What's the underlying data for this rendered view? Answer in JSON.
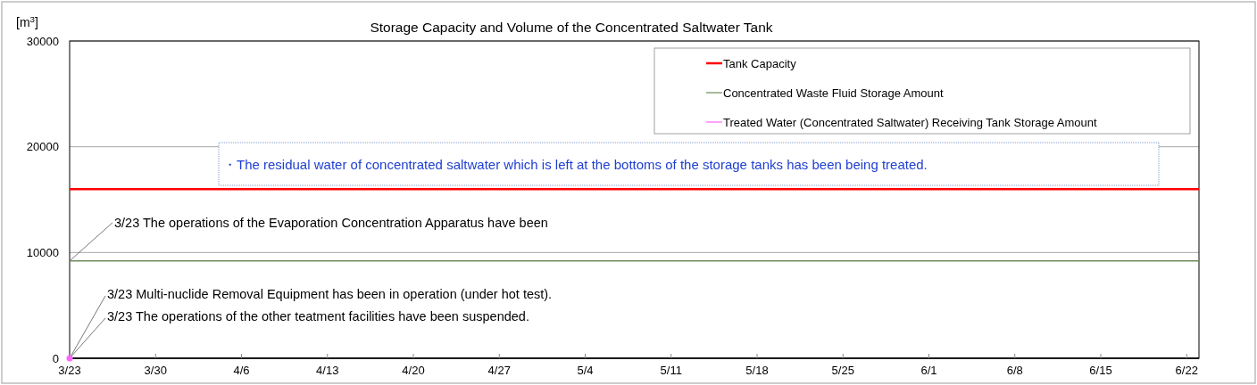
{
  "chart_data": {
    "type": "line",
    "title": "Storage Capacity and Volume of the Concentrated Saltwater Tank",
    "ylabel": "[m$^{3}$]",
    "x": [
      "--03-23",
      "--06-23"
    ],
    "xlim": [
      "--03-23",
      "--06-23"
    ],
    "xticks": [
      {
        "value": "--03-23",
        "label": "3/23"
      },
      {
        "value": "--03-30",
        "label": "3/30"
      },
      {
        "value": "--04-06",
        "label": "4/6"
      },
      {
        "value": "--04-13",
        "label": "4/13"
      },
      {
        "value": "--04-20",
        "label": "4/20"
      },
      {
        "value": "--04-27",
        "label": "4/27"
      },
      {
        "value": "--05-04",
        "label": "5/4"
      },
      {
        "value": "--05-11",
        "label": "5/11"
      },
      {
        "value": "--05-18",
        "label": "5/18"
      },
      {
        "value": "--05-25",
        "label": "5/25"
      },
      {
        "value": "--06-01",
        "label": "6/1"
      },
      {
        "value": "--06-08",
        "label": "6/8"
      },
      {
        "value": "--06-15",
        "label": "6/15"
      },
      {
        "value": "--06-22",
        "label": "6/22"
      }
    ],
    "ylim": [
      0,
      30000
    ],
    "yticks": [
      0,
      10000,
      20000,
      30000
    ],
    "grid": "y",
    "legend": "top right",
    "series": [
      {
        "name": "Tank Capacity",
        "color": "#ff0000",
        "values": [
          16000,
          16000
        ]
      },
      {
        "name": "Concentrated Waste Fluid Storage Amount",
        "color": "#6e8a5a",
        "values": [
          9200,
          9200
        ]
      },
      {
        "name": "Treated Water (Concentrated Saltwater) Receiving Tank Storage Amount",
        "color": "#ff66ff",
        "marker": "circle",
        "x": [
          "--03-23"
        ],
        "values": [
          0
        ]
      }
    ],
    "annotations": [
      "・The residual water of concentrated saltwater which is left at the bottoms of the storage tanks has been being treated.",
      {
        "text": "3/23  The operations of the Evaporation Concentration Apparatus have been",
        "x": "--03-23",
        "y": 9200
      },
      {
        "text": "3/23  Multi-nuclide Removal Equipment has been in operation (under hot test).",
        "x": "--03-23",
        "y": 0
      },
      {
        "text": "3/23   The operations of the other teatment facilities have been suspended.",
        "x": "--03-23",
        "y": 0
      }
    ]
  }
}
